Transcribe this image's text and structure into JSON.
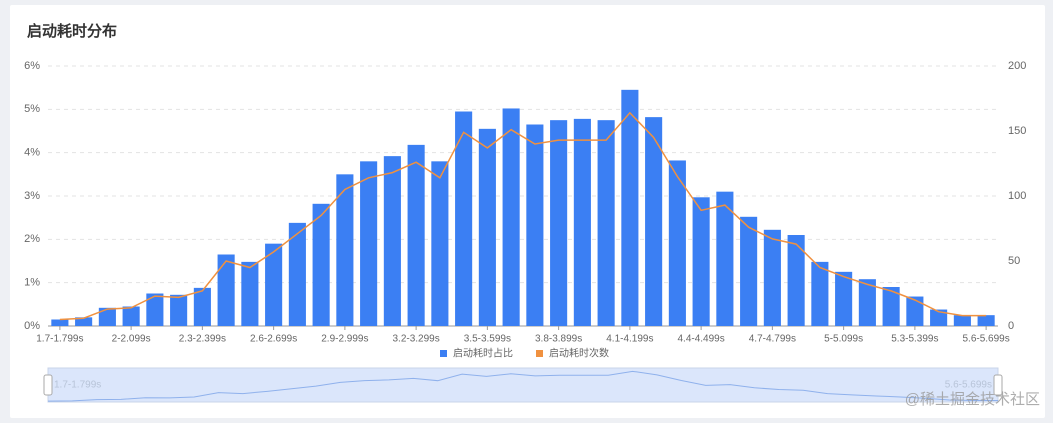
{
  "chart_data": {
    "type": "bar-line",
    "title": "启动耗时分布",
    "categories": [
      "1.7-1.799s",
      null,
      null,
      "2-2.099s",
      null,
      null,
      "2.3-2.399s",
      null,
      null,
      "2.6-2.699s",
      null,
      null,
      "2.9-2.999s",
      null,
      null,
      "3.2-3.299s",
      null,
      null,
      "3.5-3.599s",
      null,
      null,
      "3.8-3.899s",
      null,
      null,
      "4.1-4.199s",
      null,
      null,
      "4.4-4.499s",
      null,
      null,
      "4.7-4.799s",
      null,
      null,
      "5-5.099s",
      null,
      null,
      "5.3-5.399s",
      null,
      null,
      "5.6-5.699s"
    ],
    "series": [
      {
        "name": "启动耗时占比",
        "color": "#3b7ff3",
        "kind": "bar",
        "values": [
          0.15,
          0.2,
          0.42,
          0.45,
          0.75,
          0.72,
          0.88,
          1.65,
          1.48,
          1.9,
          2.38,
          2.82,
          3.5,
          3.8,
          3.92,
          4.18,
          3.8,
          4.95,
          4.55,
          5.02,
          4.65,
          4.75,
          4.78,
          4.75,
          5.45,
          4.82,
          3.82,
          2.97,
          3.1,
          2.52,
          2.22,
          2.1,
          1.48,
          1.25,
          1.08,
          0.9,
          0.68,
          0.38,
          0.25,
          0.25
        ]
      },
      {
        "name": "启动耗时次数",
        "color": "#f0913f",
        "kind": "line",
        "axis": "y2",
        "values": [
          5,
          6,
          13,
          14,
          23,
          22,
          27,
          50,
          45,
          57,
          71,
          85,
          105,
          114,
          118,
          126,
          114,
          149,
          137,
          151,
          140,
          143,
          143,
          143,
          164,
          145,
          115,
          89,
          93,
          76,
          67,
          63,
          45,
          38,
          32,
          27,
          20,
          11,
          8,
          8
        ]
      }
    ],
    "ylim": [
      0,
      6
    ],
    "yticks": [
      {
        "value": 0,
        "label": "0%"
      },
      {
        "value": 1,
        "label": "1%"
      },
      {
        "value": 2,
        "label": "2%"
      },
      {
        "value": 3,
        "label": "3%"
      },
      {
        "value": 4,
        "label": "4%"
      },
      {
        "value": 5,
        "label": "5%"
      },
      {
        "value": 6,
        "label": "6%"
      }
    ],
    "y2lim": [
      0,
      200
    ],
    "y2ticks": [
      0,
      50,
      100,
      150,
      200
    ],
    "grid": true,
    "legend": "bottom",
    "watermark": "@稀土掘金技术社区"
  }
}
